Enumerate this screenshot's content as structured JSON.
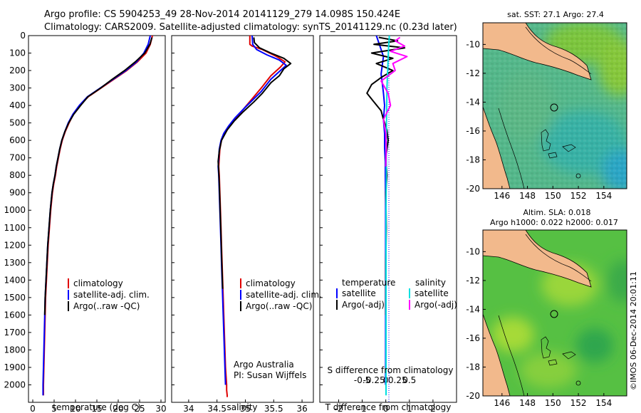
{
  "title_line1": "Argo profile: CS 5904253_49 28-Nov-2014 20141129_279 14.098S 150.424E",
  "title_line2": "Climatology: CARS2009. Satellite-adjusted climatology: synTS_20141129.nc (0.23d later)",
  "credit": "©IMOS 06-Dec-2014 20:01:11",
  "colors": {
    "climatology": "#e00000",
    "satellite": "#0000ff",
    "argo": "#000000",
    "sal_satellite": "#00e0e0",
    "sal_argo": "#ff00ff",
    "land": "#f2b98c"
  },
  "chart_data": [
    {
      "type": "line",
      "name": "temperature",
      "xlabel": "temperature (deg C)",
      "ylim": [
        2100,
        0
      ],
      "xlim": [
        -1,
        31
      ],
      "xticks": [
        0,
        5,
        10,
        15,
        20,
        25,
        30
      ],
      "yticks": [
        0,
        100,
        200,
        300,
        400,
        500,
        600,
        700,
        800,
        900,
        1000,
        1100,
        1200,
        1300,
        1400,
        1500,
        1600,
        1700,
        1800,
        1900,
        2000
      ],
      "legend": [
        "climatology",
        "satellite-adj. clim.",
        "Argo(..raw -QC)"
      ],
      "series": [
        {
          "name": "climatology",
          "color": "#e00000",
          "x": [
            28,
            27.5,
            26.5,
            24.5,
            22,
            19,
            16,
            13,
            11,
            9.5,
            8.5,
            7.6,
            6.9,
            6.4,
            6.0,
            5.6,
            5.3,
            4.9,
            4.6,
            4.2,
            3.9,
            3.6,
            3.4,
            3.2,
            3.0,
            2.9,
            2.8,
            2.7,
            2.6,
            2.5,
            2.5
          ],
          "y": [
            0,
            50,
            100,
            150,
            200,
            250,
            300,
            350,
            400,
            450,
            500,
            550,
            600,
            650,
            700,
            750,
            800,
            850,
            900,
            1000,
            1100,
            1200,
            1300,
            1400,
            1500,
            1600,
            1700,
            1800,
            1900,
            2000,
            2060
          ]
        },
        {
          "name": "satellite-adj. clim.",
          "color": "#0000ff",
          "x": [
            27.5,
            27,
            26,
            24.3,
            21.8,
            18.8,
            15.8,
            12.8,
            10.9,
            9.4,
            8.3,
            7.5,
            6.8,
            6.3,
            5.9,
            5.5,
            5.2,
            4.8,
            4.5,
            4.1,
            3.8,
            3.5,
            3.3,
            3.1,
            2.9,
            2.8,
            2.7,
            2.6,
            2.5,
            2.4,
            2.4
          ],
          "y": [
            0,
            50,
            100,
            150,
            200,
            250,
            300,
            350,
            400,
            450,
            500,
            550,
            600,
            650,
            700,
            750,
            800,
            850,
            900,
            1000,
            1100,
            1200,
            1300,
            1400,
            1500,
            1600,
            1700,
            1800,
            1900,
            2000,
            2060
          ]
        },
        {
          "name": "Argo(..raw -QC)",
          "color": "#000000",
          "x": [
            27.9,
            27.4,
            26.2,
            24.0,
            21.5,
            18.6,
            15.9,
            12.9,
            11.2,
            9.6,
            8.4,
            7.5,
            6.8,
            6.3,
            5.9,
            5.5,
            5.2,
            4.8,
            4.5,
            4.1,
            3.8,
            3.5,
            3.3,
            3.1,
            2.9,
            2.8
          ],
          "y": [
            10,
            50,
            100,
            150,
            200,
            250,
            300,
            350,
            400,
            450,
            500,
            550,
            600,
            650,
            700,
            750,
            800,
            850,
            900,
            1000,
            1100,
            1200,
            1300,
            1400,
            1500,
            1600
          ]
        }
      ]
    },
    {
      "type": "line",
      "name": "salinity",
      "xlabel": "salinity",
      "ylim": [
        2100,
        0
      ],
      "xlim": [
        33.7,
        36.2
      ],
      "xticks": [
        34,
        34.5,
        35,
        35.5,
        36
      ],
      "legend": [
        "climatology",
        "satellite-adj. clim.",
        "Argo(..raw -QC)"
      ],
      "annotation": [
        "Argo Australia",
        "PI: Susan Wijffels"
      ],
      "series": [
        {
          "name": "climatology",
          "color": "#e00000",
          "x": [
            35.08,
            35.08,
            35.12,
            35.3,
            35.55,
            35.7,
            35.62,
            35.45,
            35.28,
            35.02,
            34.84,
            34.72,
            34.64,
            34.58,
            34.55,
            34.54,
            34.53,
            34.54,
            34.55,
            34.56,
            34.57,
            34.58,
            34.59,
            34.6,
            34.61,
            34.62,
            34.63,
            34.64,
            34.65,
            34.66,
            34.67,
            34.67,
            34.68,
            34.68
          ],
          "y": [
            0,
            50,
            60,
            80,
            120,
            150,
            180,
            230,
            300,
            400,
            470,
            520,
            560,
            600,
            650,
            700,
            750,
            800,
            900,
            1000,
            1100,
            1200,
            1300,
            1400,
            1500,
            1600,
            1700,
            1800,
            1900,
            1950,
            2000,
            2030,
            2060,
            2070
          ]
        },
        {
          "name": "satellite-adj. clim.",
          "color": "#0000ff",
          "x": [
            35.12,
            35.13,
            35.2,
            35.38,
            35.6,
            35.72,
            35.62,
            35.45,
            35.28,
            35.0,
            34.82,
            34.7,
            34.62,
            34.57,
            34.54,
            34.53,
            34.52,
            34.53,
            34.54,
            34.55,
            34.56,
            34.57,
            34.58,
            34.59,
            34.6,
            34.61,
            34.62,
            34.63,
            34.64,
            34.65
          ],
          "y": [
            0,
            50,
            80,
            110,
            140,
            170,
            200,
            250,
            320,
            410,
            470,
            520,
            560,
            600,
            650,
            700,
            750,
            800,
            900,
            1000,
            1100,
            1200,
            1300,
            1400,
            1500,
            1600,
            1700,
            1800,
            1900,
            2000
          ]
        },
        {
          "name": "Argo(..raw -QC)",
          "color": "#000000",
          "x": [
            35.15,
            35.16,
            35.25,
            35.45,
            35.68,
            35.8,
            35.68,
            35.6,
            35.45,
            35.3,
            35.15,
            34.95,
            34.8,
            34.68,
            34.58,
            34.54,
            34.52,
            34.53,
            34.54,
            34.55,
            34.56,
            34.57,
            34.58,
            34.59,
            34.6
          ],
          "y": [
            10,
            40,
            70,
            100,
            130,
            160,
            190,
            230,
            270,
            330,
            380,
            440,
            490,
            540,
            600,
            660,
            720,
            780,
            850,
            950,
            1050,
            1150,
            1250,
            1350,
            1450
          ]
        }
      ]
    },
    {
      "type": "line",
      "name": "differences",
      "xlabel": "T difference from climatology",
      "xlabel2": "S difference from climatology",
      "ylim": [
        2100,
        0
      ],
      "xlim": [
        -2.8,
        3.0
      ],
      "xticks": [
        -2,
        -1,
        0,
        1,
        2
      ],
      "xticks_s": [
        "-0.5",
        "-0.25",
        "0",
        "0.25",
        "0.5"
      ],
      "legend_headers": [
        "temperature",
        "salinity"
      ],
      "legend": [
        "satellite",
        "Argo(-adj)",
        "satellite",
        "Argo(-adj)"
      ],
      "series": [
        {
          "name": "T satellite",
          "color": "#0000ff",
          "x": [
            -0.4,
            -0.3,
            -0.2,
            -0.1,
            -0.15,
            -0.2,
            -0.15,
            -0.1,
            -0.05,
            -0.1,
            -0.05,
            -0.05,
            -0.02,
            -0.02,
            -0.01,
            -0.01,
            -0.01,
            -0.01,
            -0.01
          ],
          "y": [
            0,
            40,
            80,
            120,
            170,
            220,
            270,
            330,
            400,
            480,
            560,
            640,
            720,
            800,
            950,
            1100,
            1300,
            1600,
            2000
          ]
        },
        {
          "name": "T Argo(-adj)",
          "color": "#000000",
          "x": [
            -0.3,
            0.5,
            -0.5,
            0.8,
            -0.6,
            0.3,
            -0.4,
            0.3,
            -0.2,
            -0.6,
            -0.8,
            -0.5,
            -0.2,
            -0.1,
            0.05,
            0.1,
            0.0,
            0.05,
            0.0,
            0.02,
            0.0,
            0.0
          ],
          "y": [
            10,
            30,
            50,
            70,
            100,
            130,
            160,
            200,
            240,
            280,
            330,
            380,
            430,
            480,
            540,
            600,
            700,
            800,
            900,
            1100,
            1300,
            1600
          ]
        },
        {
          "name": "S satellite",
          "color": "#00e0e0",
          "x": [
            0.15,
            0.12,
            0.1,
            0.08,
            0.05,
            0.04,
            0.03,
            0.02,
            0.02,
            0.01,
            0.01,
            0.01,
            0.01,
            0.01
          ],
          "y": [
            0,
            60,
            120,
            200,
            300,
            400,
            500,
            600,
            800,
            1000,
            1300,
            1600,
            1900,
            2060
          ]
        },
        {
          "name": "S Argo(-adj)",
          "color": "#ff00ff",
          "x": [
            0.6,
            0.4,
            0.8,
            0.2,
            0.9,
            0.3,
            0.4,
            -0.2,
            0.1,
            0.2,
            -0.1,
            0.0,
            0.02,
            0.0
          ],
          "y": [
            10,
            30,
            60,
            90,
            120,
            160,
            200,
            260,
            330,
            400,
            480,
            560,
            650,
            750
          ]
        }
      ]
    },
    {
      "type": "heatmap",
      "name": "sst-map",
      "title": "sat. SST: 27.1  Argo: 27.4",
      "xticks": [
        146,
        148,
        150,
        152,
        154
      ],
      "yticks": [
        -10,
        -12,
        -14,
        -16,
        -18,
        -20
      ]
    },
    {
      "type": "heatmap",
      "name": "sla-map",
      "title_line1": "Altim. SLA: 0.018",
      "title_line2": "Argo h1000: 0.022 h2000: 0.017",
      "xticks": [
        146,
        148,
        150,
        152,
        154
      ],
      "yticks": [
        -10,
        -12,
        -14,
        -16,
        -18,
        -20
      ]
    }
  ]
}
